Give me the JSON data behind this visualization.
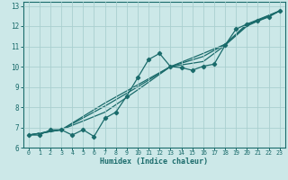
{
  "xlabel": "Humidex (Indice chaleur)",
  "xlim": [
    -0.5,
    23.5
  ],
  "ylim": [
    6,
    13.2
  ],
  "xticks": [
    0,
    1,
    2,
    3,
    4,
    5,
    6,
    7,
    8,
    9,
    10,
    11,
    12,
    13,
    14,
    15,
    16,
    17,
    18,
    19,
    20,
    21,
    22,
    23
  ],
  "yticks": [
    6,
    7,
    8,
    9,
    10,
    11,
    12,
    13
  ],
  "bg_color": "#cce8e8",
  "grid_color": "#aacfcf",
  "line_color": "#1a6b6b",
  "line_width": 0.9,
  "marker": "D",
  "marker_size": 2.2,
  "line1": [
    [
      0,
      6.62
    ],
    [
      1,
      6.62
    ],
    [
      2,
      6.88
    ],
    [
      3,
      6.88
    ],
    [
      4,
      6.62
    ],
    [
      5,
      6.88
    ],
    [
      6,
      6.55
    ],
    [
      7,
      7.45
    ],
    [
      8,
      7.75
    ],
    [
      9,
      8.55
    ],
    [
      10,
      9.45
    ],
    [
      11,
      10.35
    ],
    [
      12,
      10.65
    ],
    [
      13,
      10.0
    ],
    [
      14,
      9.95
    ],
    [
      15,
      9.82
    ],
    [
      16,
      10.02
    ],
    [
      17,
      10.12
    ],
    [
      18,
      11.05
    ],
    [
      19,
      11.85
    ],
    [
      20,
      12.1
    ],
    [
      21,
      12.25
    ],
    [
      22,
      12.45
    ],
    [
      23,
      12.75
    ]
  ],
  "line2": [
    [
      0,
      6.62
    ],
    [
      3,
      6.88
    ],
    [
      7,
      7.75
    ],
    [
      10,
      8.85
    ],
    [
      13,
      10.0
    ],
    [
      16,
      10.25
    ],
    [
      18,
      11.05
    ],
    [
      20,
      12.0
    ],
    [
      23,
      12.75
    ]
  ],
  "line3": [
    [
      0,
      6.62
    ],
    [
      3,
      6.88
    ],
    [
      7,
      8.05
    ],
    [
      10,
      9.0
    ],
    [
      13,
      10.0
    ],
    [
      16,
      10.5
    ],
    [
      18,
      11.1
    ],
    [
      20,
      12.05
    ],
    [
      23,
      12.75
    ]
  ],
  "line4": [
    [
      0,
      6.62
    ],
    [
      3,
      6.88
    ],
    [
      7,
      8.2
    ],
    [
      10,
      9.1
    ],
    [
      13,
      10.0
    ],
    [
      16,
      10.65
    ],
    [
      18,
      11.1
    ],
    [
      20,
      12.1
    ],
    [
      23,
      12.75
    ]
  ]
}
